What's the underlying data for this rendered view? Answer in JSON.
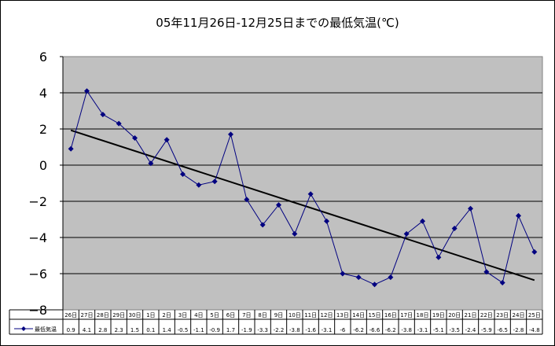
{
  "chart_data": {
    "type": "line",
    "title": "05年11月26日-12月25日までの最低気温(℃)",
    "xlabel": "",
    "ylabel": "",
    "ylim": [
      -8,
      6
    ],
    "yticks": [
      -8,
      -6,
      -4,
      -2,
      0,
      2,
      4,
      6
    ],
    "grid": true,
    "legend": "bottom-left (data table)",
    "categories": [
      "26日",
      "27日",
      "28日",
      "29日",
      "30日",
      "1日",
      "2日",
      "3日",
      "4日",
      "5日",
      "6日",
      "7日",
      "8日",
      "9日",
      "10日",
      "11日",
      "12日",
      "13日",
      "14日",
      "15日",
      "16日",
      "17日",
      "18日",
      "19日",
      "20日",
      "21日",
      "22日",
      "23日",
      "24日",
      "25日"
    ],
    "series": [
      {
        "name": "最低気温",
        "values": [
          0.9,
          4.1,
          2.8,
          2.3,
          1.5,
          0.1,
          1.4,
          -0.5,
          -1.1,
          -0.9,
          1.7,
          -1.9,
          -3.3,
          -2.2,
          -3.8,
          -1.6,
          -3.1,
          -6,
          -6.2,
          -6.6,
          -6.2,
          -3.8,
          -3.1,
          -5.1,
          -3.5,
          -2.4,
          -5.9,
          -6.5,
          -2.8,
          -4.8
        ]
      }
    ],
    "table_values": [
      "0.9",
      "4.1",
      "2.8",
      "2.3",
      "1.5",
      "0.1",
      "1.4",
      "-0.5",
      "-1.1",
      "-0.9",
      "1.7",
      "-1.9",
      "-3.3",
      "-2.2",
      "-3.8",
      "-1.6",
      "-3.1",
      "-6",
      "-6.2",
      "-6.6",
      "-6.2",
      "-3.8",
      "-3.1",
      "-5.1",
      "-3.5",
      "-2.4",
      "-5.9",
      "-6.5",
      "-2.8",
      "-4.8"
    ],
    "trendline": {
      "type": "linear",
      "color": "#000000"
    },
    "colors": {
      "plot_background": "#c0c0c0",
      "series_line": "#000080",
      "trend_line": "#000000",
      "grid": "#000000"
    }
  }
}
